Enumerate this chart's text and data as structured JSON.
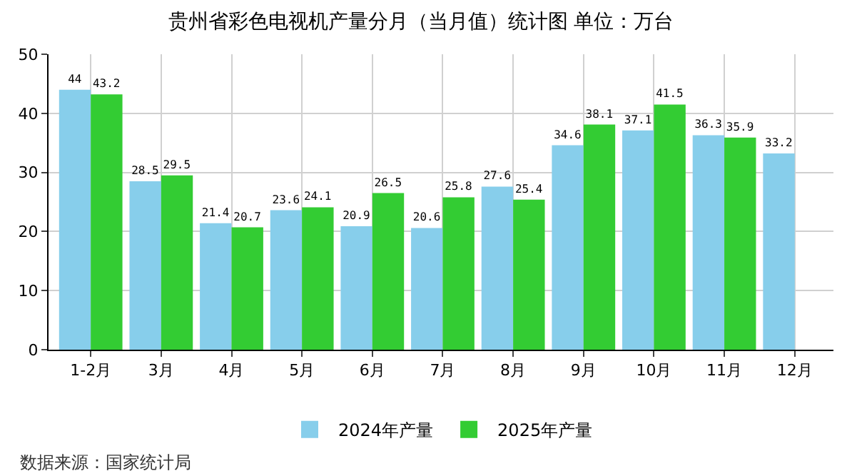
{
  "chart_data": {
    "type": "bar",
    "title": "贵州省彩色电视机产量分月（当月值）统计图 单位：万台",
    "categories": [
      "1-2月",
      "3月",
      "4月",
      "5月",
      "6月",
      "7月",
      "8月",
      "9月",
      "10月",
      "11月",
      "12月"
    ],
    "series": [
      {
        "name": "2024年产量",
        "color": "#87ceeb",
        "values": [
          44,
          28.5,
          21.4,
          23.6,
          20.9,
          20.6,
          27.6,
          34.6,
          37.1,
          36.3,
          33.2
        ]
      },
      {
        "name": "2025年产量",
        "color": "#33cc33",
        "values": [
          43.2,
          29.5,
          20.7,
          24.1,
          26.5,
          25.8,
          25.4,
          38.1,
          41.5,
          35.9,
          null
        ]
      }
    ],
    "ylim": [
      0,
      50
    ],
    "yticks": [
      0,
      10,
      20,
      30,
      40,
      50
    ],
    "grid": true,
    "legend": "bottom",
    "data_labels": true,
    "annotations": [
      "数据来源：国家统计局"
    ]
  }
}
